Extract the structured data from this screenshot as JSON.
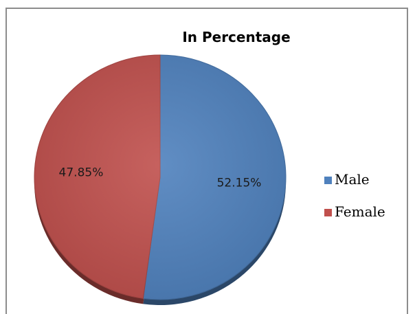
{
  "chart_data": {
    "type": "pie",
    "title": "In Percentage",
    "categories": [
      "Male",
      "Female"
    ],
    "values": [
      52.15,
      47.85
    ],
    "data_labels": [
      "52.15%",
      "47.85%"
    ],
    "colors": [
      "#4f81bd",
      "#c0504d"
    ],
    "legend_position": "right"
  }
}
